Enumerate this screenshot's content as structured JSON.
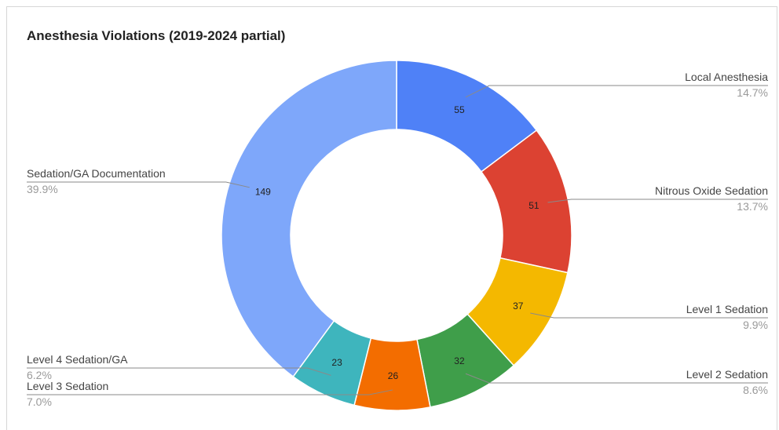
{
  "chart_data": {
    "type": "pie",
    "title": "Anesthesia Violations (2019-2024 partial)",
    "donut": true,
    "slices": [
      {
        "label": "Local Anesthesia",
        "value": 55,
        "percent": "14.7%",
        "color": "#4f81f7"
      },
      {
        "label": "Nitrous Oxide Sedation",
        "value": 51,
        "percent": "13.7%",
        "color": "#dc4232"
      },
      {
        "label": "Level 1 Sedation",
        "value": 37,
        "percent": "9.9%",
        "color": "#f4b800"
      },
      {
        "label": "Level 2 Sedation",
        "value": 32,
        "percent": "8.6%",
        "color": "#3f9e4a"
      },
      {
        "label": "Level 3 Sedation",
        "value": 26,
        "percent": "7.0%",
        "color": "#f36d00"
      },
      {
        "label": "Level 4 Sedation/GA",
        "value": 23,
        "percent": "6.2%",
        "color": "#3eb5bd"
      },
      {
        "label": "Sedation/GA Documentation",
        "value": 149,
        "percent": "39.9%",
        "color": "#7ea7fa"
      }
    ]
  }
}
